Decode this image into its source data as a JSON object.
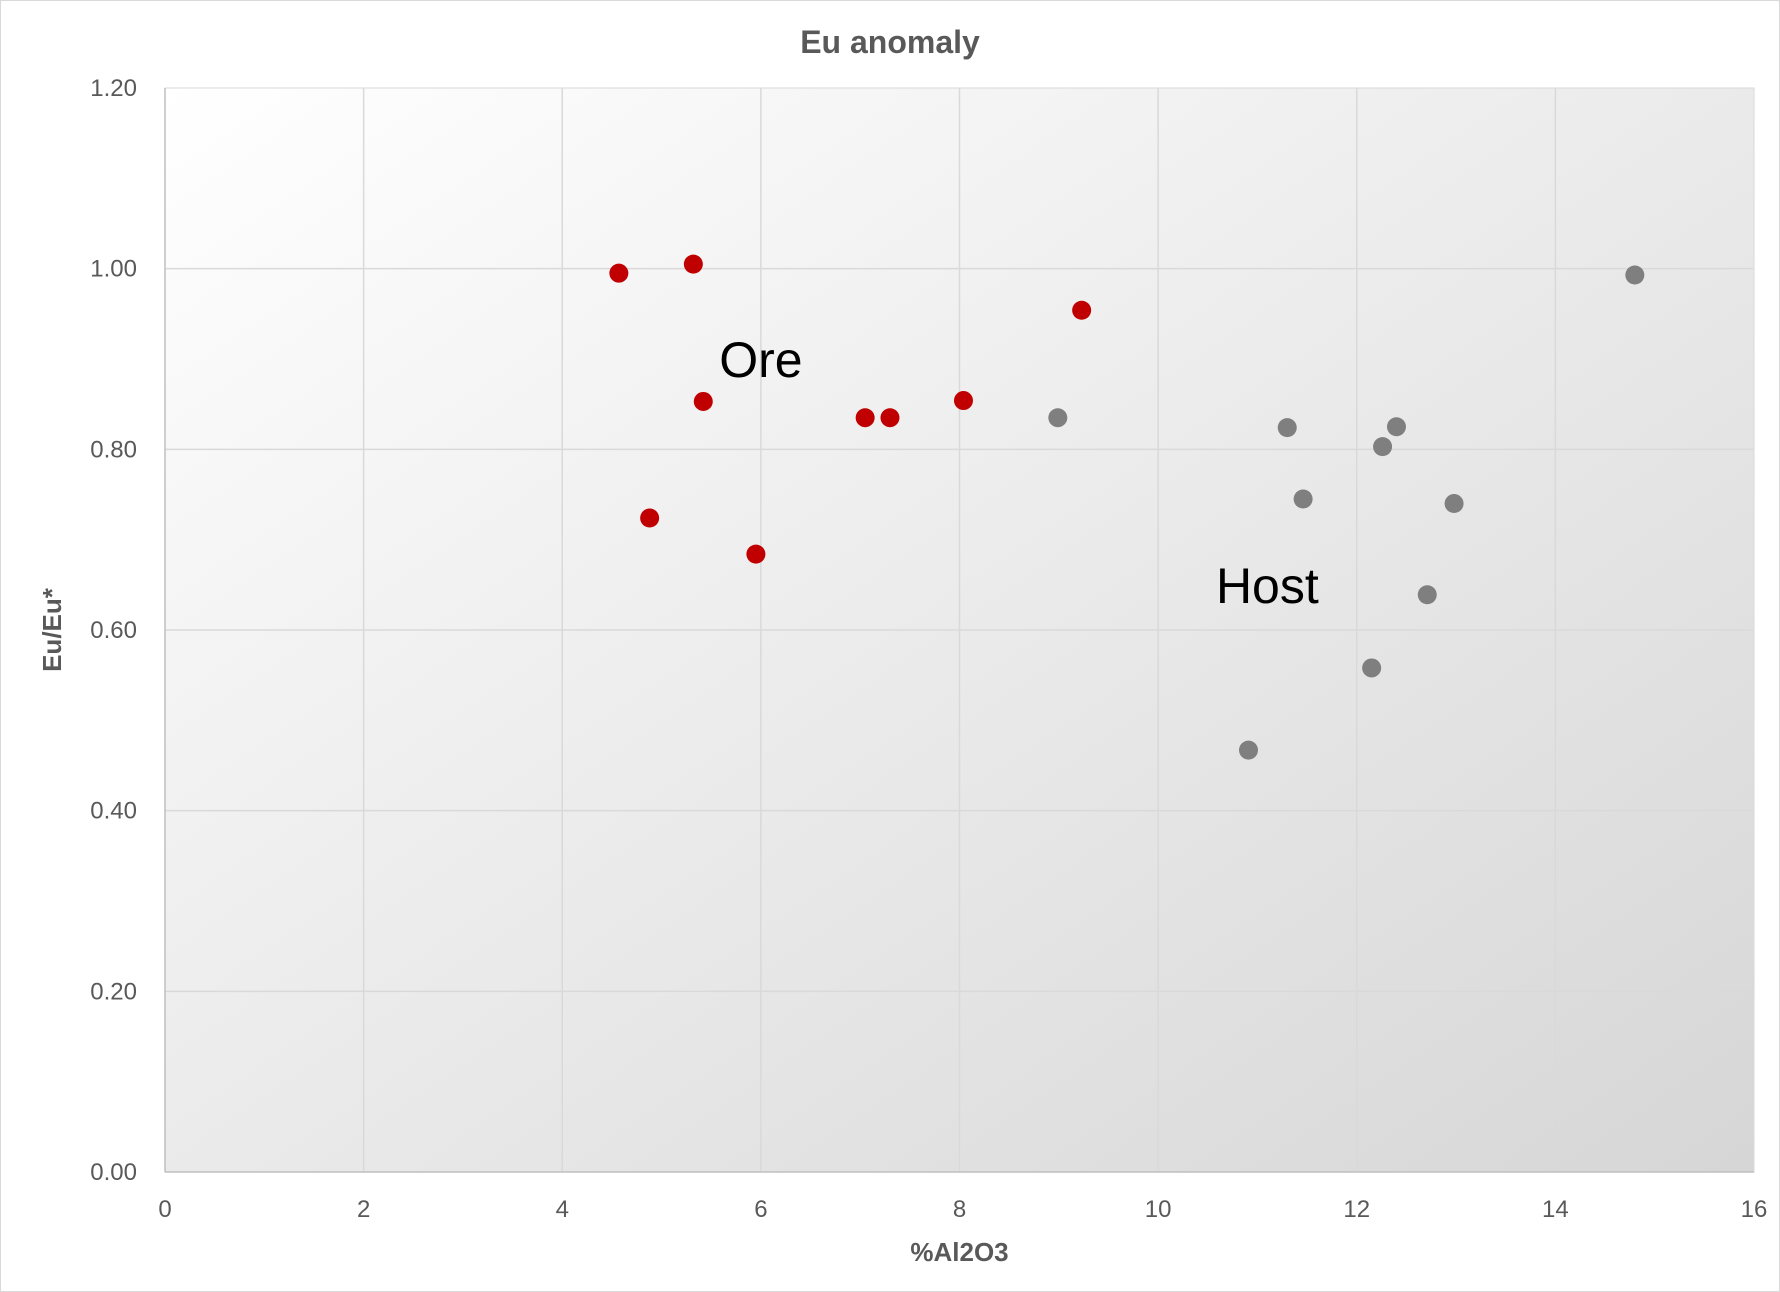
{
  "chart_data": {
    "type": "scatter",
    "title": "Eu anomaly",
    "xlabel": "%Al2O3",
    "ylabel": "Eu/Eu*",
    "xlim": [
      0,
      16
    ],
    "ylim": [
      0,
      1.2
    ],
    "x_ticks": [
      "0",
      "2",
      "4",
      "6",
      "8",
      "10",
      "12",
      "14",
      "16"
    ],
    "y_ticks": [
      "0.00",
      "0.20",
      "0.40",
      "0.60",
      "0.80",
      "1.00",
      "1.20"
    ],
    "grid": true,
    "legend": "none",
    "annotations": [
      {
        "text": "Ore",
        "x": 6.0,
        "y": 0.9
      },
      {
        "text": "Host",
        "x": 11.1,
        "y": 0.65
      }
    ],
    "series": [
      {
        "color": "#c00000",
        "points": [
          {
            "x": 4.57,
            "y": 0.995
          },
          {
            "x": 5.32,
            "y": 1.005
          },
          {
            "x": 5.42,
            "y": 0.853
          },
          {
            "x": 4.88,
            "y": 0.724
          },
          {
            "x": 5.95,
            "y": 0.684
          },
          {
            "x": 7.05,
            "y": 0.835
          },
          {
            "x": 7.3,
            "y": 0.835
          },
          {
            "x": 8.04,
            "y": 0.854
          },
          {
            "x": 9.23,
            "y": 0.954
          }
        ]
      },
      {
        "color": "#7f7f7f",
        "points": [
          {
            "x": 8.99,
            "y": 0.835
          },
          {
            "x": 11.3,
            "y": 0.824
          },
          {
            "x": 11.46,
            "y": 0.745
          },
          {
            "x": 12.26,
            "y": 0.803
          },
          {
            "x": 12.4,
            "y": 0.825
          },
          {
            "x": 12.98,
            "y": 0.74
          },
          {
            "x": 12.71,
            "y": 0.639
          },
          {
            "x": 12.15,
            "y": 0.558
          },
          {
            "x": 10.91,
            "y": 0.467
          },
          {
            "x": 14.8,
            "y": 0.993
          }
        ]
      }
    ]
  }
}
